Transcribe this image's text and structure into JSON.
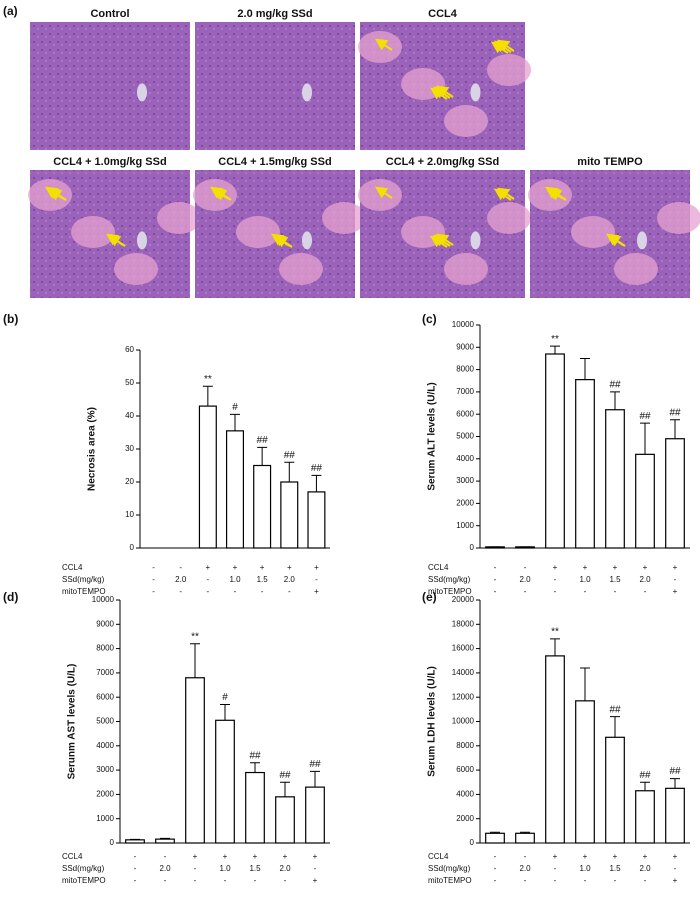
{
  "panel_a": {
    "label": "(a)",
    "images": [
      {
        "caption": "Control"
      },
      {
        "caption": "2.0 mg/kg SSd"
      },
      {
        "caption": "CCL4"
      },
      {
        "caption": "CCL4 + 1.0mg/kg SSd"
      },
      {
        "caption": "CCL4 + 1.5mg/kg SSd"
      },
      {
        "caption": "CCL4 + 2.0mg/kg SSd"
      },
      {
        "caption": "mito TEMPO"
      }
    ]
  },
  "chart_data": [
    {
      "type": "bar",
      "panel_label": "(b)",
      "ylabel": "Necrosis area (%)",
      "color": "#ffffff",
      "categories": [
        null,
        null,
        null,
        null,
        null,
        null,
        null
      ],
      "values": [
        0,
        0,
        43,
        35.5,
        25,
        20,
        17
      ],
      "errors": [
        0,
        0,
        6,
        5,
        5.5,
        6,
        5
      ],
      "annotations": [
        null,
        null,
        "**",
        "#",
        "##",
        "##",
        "##"
      ],
      "ylim": [
        0,
        60
      ],
      "yticks": [
        0,
        10,
        20,
        30,
        40,
        50,
        60
      ],
      "rows": [
        {
          "label": "CCL4",
          "cells": [
            "-",
            "-",
            "+",
            "+",
            "+",
            "+",
            "+"
          ]
        },
        {
          "label": "SSd(mg/kg)",
          "cells": [
            "-",
            "2.0",
            "-",
            "1.0",
            "1.5",
            "2.0",
            "-"
          ]
        },
        {
          "label": "mitoTEMPO",
          "cells": [
            "-",
            "-",
            "-",
            "-",
            "-",
            "-",
            "+"
          ]
        }
      ]
    },
    {
      "type": "bar",
      "panel_label": "(c)",
      "ylabel": "Serum ALT  levels  (U/L)",
      "color": "#ffffff",
      "categories": [
        null,
        null,
        null,
        null,
        null,
        null,
        null
      ],
      "values": [
        50,
        50,
        8700,
        7550,
        6200,
        4200,
        4900
      ],
      "errors": [
        0,
        0,
        350,
        950,
        800,
        1400,
        850
      ],
      "annotations": [
        null,
        null,
        "**",
        null,
        "##",
        "##",
        "##"
      ],
      "ylim": [
        0,
        10000
      ],
      "yticks": [
        0,
        1000,
        2000,
        3000,
        4000,
        5000,
        6000,
        7000,
        8000,
        9000,
        10000
      ],
      "rows": [
        {
          "label": "CCL4",
          "cells": [
            "-",
            "-",
            "+",
            "+",
            "+",
            "+",
            "+"
          ]
        },
        {
          "label": "SSd(mg/kg)",
          "cells": [
            "-",
            "2.0",
            "-",
            "1.0",
            "1.5",
            "2.0",
            "-"
          ]
        },
        {
          "label": "mitoTEMPO",
          "cells": [
            "-",
            "-",
            "-",
            "-",
            "-",
            "-",
            "+"
          ]
        }
      ]
    },
    {
      "type": "bar",
      "panel_label": "(d)",
      "ylabel": "Serunm AST  levels  (U/L)",
      "color": "#ffffff",
      "categories": [
        null,
        null,
        null,
        null,
        null,
        null,
        null
      ],
      "values": [
        130,
        160,
        6800,
        5050,
        2900,
        1900,
        2300
      ],
      "errors": [
        20,
        30,
        1400,
        650,
        400,
        600,
        650
      ],
      "annotations": [
        null,
        null,
        "**",
        "#",
        "##",
        "##",
        "##"
      ],
      "ylim": [
        0,
        10000
      ],
      "yticks": [
        0,
        1000,
        2000,
        3000,
        4000,
        5000,
        6000,
        7000,
        8000,
        9000,
        10000
      ],
      "rows": [
        {
          "label": "CCL4",
          "cells": [
            "-",
            "-",
            "+",
            "+",
            "+",
            "+",
            "+"
          ]
        },
        {
          "label": "SSd(mg/kg)",
          "cells": [
            "-",
            "2.0",
            "-",
            "1.0",
            "1.5",
            "2.0",
            "-"
          ]
        },
        {
          "label": "mitoTEMPO",
          "cells": [
            "-",
            "-",
            "-",
            "-",
            "-",
            "-",
            "+"
          ]
        }
      ]
    },
    {
      "type": "bar",
      "panel_label": "(e)",
      "ylabel": "Serum LDH  levels  (U/L)",
      "color": "#ffffff",
      "categories": [
        null,
        null,
        null,
        null,
        null,
        null,
        null
      ],
      "values": [
        800,
        800,
        15400,
        11700,
        8700,
        4300,
        4500
      ],
      "errors": [
        80,
        80,
        1400,
        2700,
        1700,
        700,
        800
      ],
      "annotations": [
        null,
        null,
        "**",
        null,
        "##",
        "##",
        "##"
      ],
      "ylim": [
        0,
        20000
      ],
      "yticks": [
        0,
        2000,
        4000,
        6000,
        8000,
        10000,
        12000,
        14000,
        16000,
        18000,
        20000
      ],
      "rows": [
        {
          "label": "CCL4",
          "cells": [
            "-",
            "-",
            "+",
            "+",
            "+",
            "+",
            "+"
          ]
        },
        {
          "label": "SSd(mg/kg)",
          "cells": [
            "-",
            "2.0",
            "-",
            "1.0",
            "1.5",
            "2.0",
            "-"
          ]
        },
        {
          "label": "mitoTEMPO",
          "cells": [
            "-",
            "-",
            "-",
            "-",
            "-",
            "-",
            "+"
          ]
        }
      ]
    }
  ]
}
